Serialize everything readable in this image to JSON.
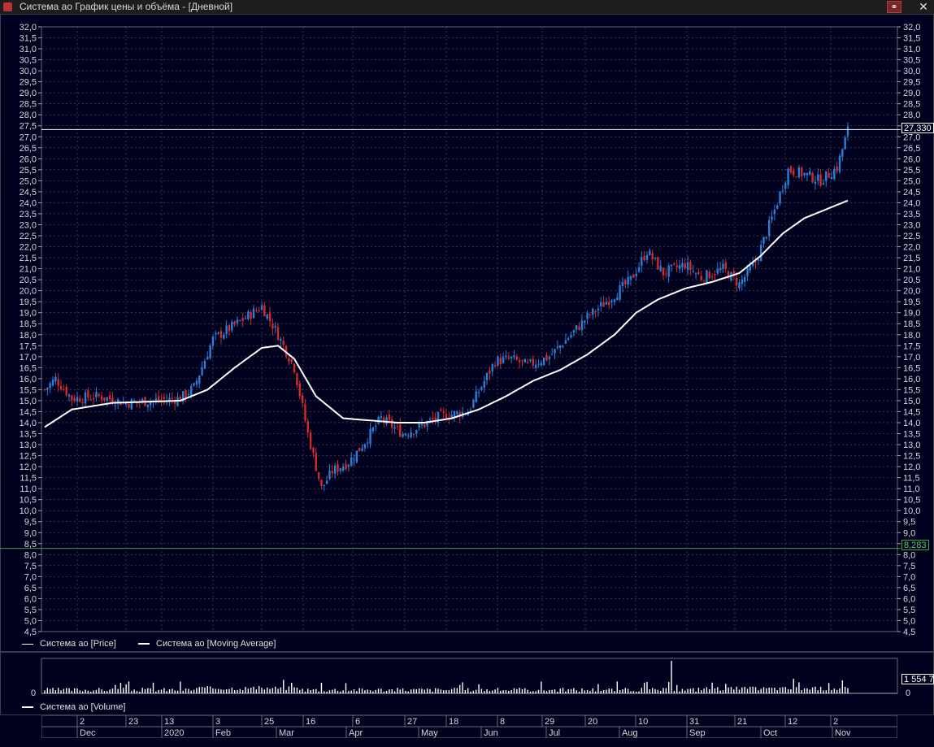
{
  "window": {
    "title": "Система ао График цены и объёма - [Дневной]",
    "icons": {
      "app": "chart-app-icon",
      "link": "link-icon",
      "close": "close-icon"
    },
    "close_label": "✕"
  },
  "legend": {
    "price_label": "Система ао [Price]",
    "ma_label": "Система ао [Moving Average]",
    "volume_label": "Система ао [Volume]"
  },
  "price_axis": {
    "ticks": [
      "32,0",
      "31,5",
      "31,0",
      "30,5",
      "30,0",
      "29,5",
      "29,0",
      "28,5",
      "28,0",
      "27,5",
      "27,0",
      "26,5",
      "26,0",
      "25,5",
      "25,0",
      "24,5",
      "24,0",
      "23,5",
      "23,0",
      "22,5",
      "22,0",
      "21,5",
      "21,0",
      "20,5",
      "20,0",
      "19,5",
      "19,0",
      "18,5",
      "18,0",
      "17,5",
      "17,0",
      "16,5",
      "16,0",
      "15,5",
      "15,0",
      "14,5",
      "14,0",
      "13,5",
      "13,0",
      "12,5",
      "12,0",
      "11,5",
      "11,0",
      "10,5",
      "10,0",
      "9,5",
      "9,0",
      "8,5",
      "8,0",
      "7,5",
      "7,0",
      "6,5",
      "6,0",
      "5,5",
      "5,0",
      "4,5"
    ],
    "min": 4.5,
    "max": 32.0,
    "current_price_label": "27,330",
    "current_price": 27.33,
    "support_label": "8,283",
    "support_price": 8.283
  },
  "volume_axis": {
    "zero_label": "0",
    "last_label": "1 554 7"
  },
  "timeline": {
    "days": [
      "2",
      "23",
      "13",
      "3",
      "25",
      "16",
      "6",
      "27",
      "18",
      "8",
      "29",
      "20",
      "10",
      "31",
      "21",
      "12",
      "2"
    ],
    "months": [
      "Dec",
      "2020",
      "Feb",
      "Mar",
      "Apr",
      "May",
      "Jun",
      "Jul",
      "Aug",
      "Sep",
      "Oct",
      "Nov"
    ]
  },
  "colors": {
    "background": "#00001f",
    "grid": "#5a5a66",
    "up_candle": "#2a7fd4",
    "down_candle": "#d42a2a",
    "moving_average": "#ffffff",
    "current_price_line": "#ffffff",
    "support_line": "#3aa83a",
    "axis_text": "#d8d8d8"
  },
  "chart_data": {
    "type": "candlestick",
    "series": [
      {
        "name": "Система ао [Price]",
        "anchors": [
          [
            0,
            15.5
          ],
          [
            4,
            16.0
          ],
          [
            10,
            15.1
          ],
          [
            20,
            15.2
          ],
          [
            30,
            14.9
          ],
          [
            40,
            15.0
          ],
          [
            50,
            15.1
          ],
          [
            55,
            15.6
          ],
          [
            62,
            17.8
          ],
          [
            72,
            18.6
          ],
          [
            80,
            19.3
          ],
          [
            86,
            18.0
          ],
          [
            92,
            16.5
          ],
          [
            97,
            13.5
          ],
          [
            102,
            11.0
          ],
          [
            106,
            11.8
          ],
          [
            112,
            12.2
          ],
          [
            116,
            12.8
          ],
          [
            124,
            14.2
          ],
          [
            132,
            13.5
          ],
          [
            138,
            13.8
          ],
          [
            146,
            14.3
          ],
          [
            156,
            14.5
          ],
          [
            166,
            16.8
          ],
          [
            172,
            16.9
          ],
          [
            178,
            16.6
          ],
          [
            186,
            17.0
          ],
          [
            194,
            18.0
          ],
          [
            200,
            18.8
          ],
          [
            208,
            19.6
          ],
          [
            216,
            20.5
          ],
          [
            222,
            21.8
          ],
          [
            228,
            20.8
          ],
          [
            236,
            21.2
          ],
          [
            242,
            20.6
          ],
          [
            250,
            21.0
          ],
          [
            256,
            20.3
          ],
          [
            262,
            21.3
          ],
          [
            268,
            23.3
          ],
          [
            274,
            25.5
          ],
          [
            280,
            25.3
          ],
          [
            286,
            25.0
          ],
          [
            292,
            25.6
          ],
          [
            296,
            27.3
          ]
        ]
      },
      {
        "name": "Система ао [Moving Average]",
        "anchors": [
          [
            0,
            13.8
          ],
          [
            10,
            14.6
          ],
          [
            25,
            14.9
          ],
          [
            50,
            15.0
          ],
          [
            60,
            15.5
          ],
          [
            70,
            16.5
          ],
          [
            80,
            17.4
          ],
          [
            86,
            17.5
          ],
          [
            92,
            16.9
          ],
          [
            100,
            15.2
          ],
          [
            110,
            14.2
          ],
          [
            120,
            14.1
          ],
          [
            130,
            14.0
          ],
          [
            140,
            14.0
          ],
          [
            150,
            14.2
          ],
          [
            160,
            14.6
          ],
          [
            170,
            15.2
          ],
          [
            180,
            15.9
          ],
          [
            190,
            16.4
          ],
          [
            200,
            17.1
          ],
          [
            210,
            18.0
          ],
          [
            218,
            19.0
          ],
          [
            226,
            19.6
          ],
          [
            236,
            20.1
          ],
          [
            246,
            20.4
          ],
          [
            256,
            20.8
          ],
          [
            264,
            21.6
          ],
          [
            272,
            22.6
          ],
          [
            280,
            23.3
          ],
          [
            290,
            23.8
          ],
          [
            296,
            24.1
          ]
        ]
      },
      {
        "name": "Система ао [Volume]",
        "values": "shown as bars, largest spike in Aug"
      }
    ],
    "x_ticks": [
      "2",
      "23",
      "13",
      "3",
      "25",
      "16",
      "6",
      "27",
      "18",
      "8",
      "29",
      "20",
      "10",
      "31",
      "21",
      "12",
      "2"
    ],
    "ylim": [
      4.5,
      32.0
    ],
    "grid": true
  }
}
